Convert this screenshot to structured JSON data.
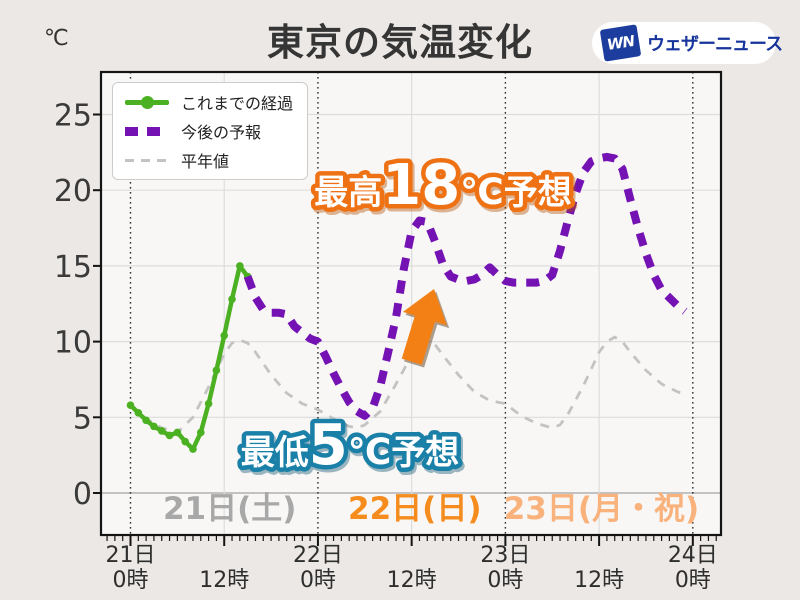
{
  "title": "東京の気温変化",
  "y_unit_label": "℃",
  "logo": {
    "mark": "WN",
    "name": "ウェザーニュース"
  },
  "legend": {
    "items": [
      {
        "label": "これまでの経過",
        "style": "solid-with-markers",
        "color": "#4cb122"
      },
      {
        "label": "今後の予報",
        "style": "dashed-thick",
        "color": "#7412b4"
      },
      {
        "label": "平年値",
        "style": "dashed-thin",
        "color": "#c3c3c3"
      }
    ]
  },
  "annotations": {
    "max": {
      "prefix": "最高",
      "value": "18",
      "unit": "℃",
      "suffix": "予想",
      "color": "#ee7114"
    },
    "min": {
      "prefix": "最低",
      "value": "5",
      "unit": "℃",
      "suffix": "予想",
      "color": "#1a80a8"
    }
  },
  "day_labels": [
    {
      "text": "21日(土)",
      "color": "#a8a8a8",
      "t": 12.7
    },
    {
      "text": "22日(日)",
      "color": "#f68b1e",
      "t": 36.4
    },
    {
      "text": "23日(月・祝)",
      "color": "#f9b27c",
      "t": 60.3
    }
  ],
  "colors": {
    "page_bg": "#ebe8e5",
    "plot_bg": "#f8f7f5",
    "grid": "#dddddd",
    "zero_line": "#c2c2c2",
    "day_boundary": "#2f2f2f",
    "axis": "#141414",
    "observed": "#4cb122",
    "forecast": "#7412b4",
    "normal": "#c3c3c3",
    "arrow": "#f28015"
  },
  "chart_data": {
    "type": "line",
    "title": "東京の気温変化",
    "xlabel": "",
    "ylabel": "℃",
    "x_unit": "hours from 21日0時",
    "x_range_hours": [
      0,
      72
    ],
    "ylim": [
      -3,
      28
    ],
    "grid": true,
    "legend_position": "upper-left",
    "y_axis": {
      "ticks": [
        0,
        5,
        10,
        15,
        20,
        25
      ],
      "unit": "℃"
    },
    "x_tick_labels": [
      {
        "t": 0,
        "day": "21日",
        "hour": "0時"
      },
      {
        "t": 12,
        "hour": "12時"
      },
      {
        "t": 24,
        "day": "22日",
        "hour": "0時"
      },
      {
        "t": 36,
        "hour": "12時"
      },
      {
        "t": 48,
        "day": "23日",
        "hour": "0時"
      },
      {
        "t": 60,
        "hour": "12時"
      },
      {
        "t": 72,
        "day": "24日",
        "hour": "0時"
      }
    ],
    "day_boundaries_t": [
      0,
      24,
      48,
      72
    ],
    "noon_gridlines_t": [
      12,
      36,
      60
    ],
    "series": [
      {
        "name": "これまでの経過",
        "style": "solid",
        "markers": true,
        "color": "#4cb122",
        "points": [
          [
            0,
            5.8
          ],
          [
            1,
            5.3
          ],
          [
            2,
            4.8
          ],
          [
            3,
            4.4
          ],
          [
            4,
            4.1
          ],
          [
            5,
            3.8
          ],
          [
            6,
            4.0
          ],
          [
            7,
            3.4
          ],
          [
            8,
            2.9
          ],
          [
            9,
            4.0
          ],
          [
            10,
            5.9
          ],
          [
            11,
            8.1
          ],
          [
            12,
            10.4
          ],
          [
            13,
            12.8
          ],
          [
            14,
            15.0
          ],
          [
            15,
            14.3
          ]
        ]
      },
      {
        "name": "今後の予報",
        "style": "dashed",
        "markers": false,
        "color": "#7412b4",
        "points": [
          [
            15,
            14.3
          ],
          [
            16,
            12.9
          ],
          [
            17,
            12.1
          ],
          [
            18,
            11.9
          ],
          [
            19,
            11.9
          ],
          [
            20,
            11.8
          ],
          [
            21,
            11.0
          ],
          [
            22,
            10.6
          ],
          [
            23,
            10.2
          ],
          [
            24,
            10.0
          ],
          [
            25,
            9.0
          ],
          [
            26,
            7.9
          ],
          [
            27,
            6.9
          ],
          [
            28,
            6.0
          ],
          [
            29,
            5.4
          ],
          [
            30,
            5.1
          ],
          [
            31,
            5.6
          ],
          [
            32,
            7.1
          ],
          [
            33,
            9.3
          ],
          [
            34,
            11.6
          ],
          [
            35,
            14.8
          ],
          [
            36,
            17.3
          ],
          [
            37,
            18.0
          ],
          [
            38,
            17.9
          ],
          [
            39,
            16.6
          ],
          [
            40,
            15.1
          ],
          [
            41,
            14.3
          ],
          [
            42,
            14.1
          ],
          [
            43,
            14.0
          ],
          [
            44,
            14.1
          ],
          [
            45,
            14.4
          ],
          [
            46,
            14.9
          ],
          [
            47,
            14.4
          ],
          [
            48,
            14.0
          ],
          [
            49,
            13.9
          ],
          [
            50,
            13.9
          ],
          [
            51,
            13.9
          ],
          [
            52,
            13.9
          ],
          [
            53,
            14.0
          ],
          [
            54,
            14.4
          ],
          [
            55,
            16.0
          ],
          [
            56,
            18.0
          ],
          [
            57,
            19.8
          ],
          [
            58,
            21.2
          ],
          [
            59,
            21.9
          ],
          [
            60,
            22.1
          ],
          [
            61,
            22.2
          ],
          [
            62,
            22.1
          ],
          [
            63,
            21.4
          ],
          [
            64,
            19.4
          ],
          [
            65,
            17.5
          ],
          [
            66,
            15.8
          ],
          [
            67,
            14.4
          ],
          [
            68,
            13.4
          ],
          [
            69,
            12.9
          ],
          [
            70,
            12.4
          ],
          [
            71,
            12.0
          ]
        ]
      },
      {
        "name": "平年値",
        "style": "dashed-thin",
        "markers": false,
        "color": "#c3c3c3",
        "points": [
          [
            0,
            5.7
          ],
          [
            2,
            4.9
          ],
          [
            4,
            4.3
          ],
          [
            6,
            4.0
          ],
          [
            8,
            5.0
          ],
          [
            10,
            7.0
          ],
          [
            12,
            9.2
          ],
          [
            13,
            9.9
          ],
          [
            14,
            10.1
          ],
          [
            15,
            9.9
          ],
          [
            16,
            9.3
          ],
          [
            18,
            7.8
          ],
          [
            20,
            6.6
          ],
          [
            22,
            5.9
          ],
          [
            24,
            5.5
          ],
          [
            26,
            4.9
          ],
          [
            28,
            4.4
          ],
          [
            29,
            4.3
          ],
          [
            30,
            4.5
          ],
          [
            32,
            5.4
          ],
          [
            34,
            7.2
          ],
          [
            36,
            9.1
          ],
          [
            37,
            9.7
          ],
          [
            38,
            10.0
          ],
          [
            39,
            9.8
          ],
          [
            40,
            9.1
          ],
          [
            42,
            7.8
          ],
          [
            44,
            6.7
          ],
          [
            46,
            6.1
          ],
          [
            48,
            5.9
          ],
          [
            50,
            5.1
          ],
          [
            52,
            4.6
          ],
          [
            54,
            4.3
          ],
          [
            55,
            4.5
          ],
          [
            56,
            5.2
          ],
          [
            58,
            7.1
          ],
          [
            60,
            9.3
          ],
          [
            61,
            10.0
          ],
          [
            62,
            10.3
          ],
          [
            63,
            10.0
          ],
          [
            64,
            9.3
          ],
          [
            66,
            8.1
          ],
          [
            68,
            7.2
          ],
          [
            70,
            6.7
          ],
          [
            71,
            6.5
          ]
        ]
      }
    ],
    "highlights": {
      "forecast_max": {
        "value_c": 18,
        "around": "22日 13時"
      },
      "forecast_min": {
        "value_c": 5,
        "around": "22日 6時"
      },
      "day3_max_c": 22,
      "end_value_c": 12
    }
  }
}
